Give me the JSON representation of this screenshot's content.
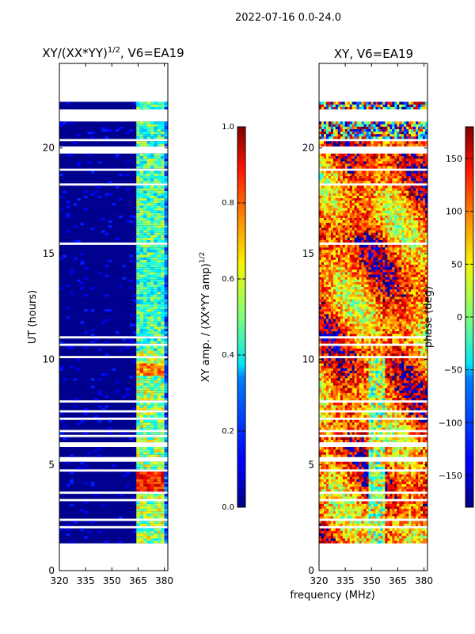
{
  "figure": {
    "suptitle": "2022-07-16 0.0-24.0"
  },
  "chart_data": [
    {
      "type": "heatmap",
      "title": "XY/(XX*YY)",
      "title_sup": "1/2",
      "title_tail": ", V6=EA19",
      "xlabel": "",
      "ylabel": "UT (hours)",
      "xlim": [
        320,
        382
      ],
      "ylim": [
        0,
        24
      ],
      "xticks": [
        320,
        335,
        350,
        365,
        380
      ],
      "yticks": [
        0,
        5,
        10,
        15,
        20
      ],
      "colorbar": {
        "label": "XY amp. / (XX*YY amp)",
        "label_sup": "1/2",
        "range": [
          0.0,
          1.0
        ],
        "ticks": [
          "0.0",
          "0.2",
          "0.4",
          "0.6",
          "0.8",
          "1.0"
        ],
        "colormap": "jet"
      },
      "data_range_hours": [
        1.3,
        22.3
      ],
      "hot_channels_MHz": [
        364,
        366,
        368,
        371,
        373,
        376,
        378
      ]
    },
    {
      "type": "heatmap",
      "title": "XY, V6=EA19",
      "xlabel": "frequency (MHz)",
      "ylabel": "",
      "xlim": [
        320,
        382
      ],
      "ylim": [
        0,
        24
      ],
      "xticks": [
        320,
        335,
        350,
        365,
        380
      ],
      "yticks": [
        0,
        5,
        10,
        15,
        20
      ],
      "colorbar": {
        "label": "phase (deg)",
        "range": [
          -180,
          180
        ],
        "ticks": [
          "150",
          "100",
          "50",
          "0",
          "−50",
          "−100",
          "−150"
        ],
        "colormap": "jet"
      },
      "data_range_hours": [
        1.3,
        22.3
      ]
    }
  ],
  "colors": {
    "jet_low": "#00007f",
    "jet_high": "#7f0000",
    "gap": "#ffffff"
  }
}
